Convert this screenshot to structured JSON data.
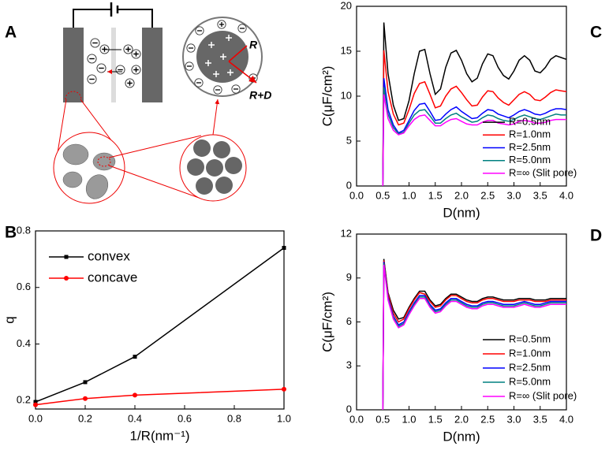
{
  "diagram": {
    "label": "A",
    "radius_label": "R",
    "outer_label": "R+D"
  },
  "chart_data": [
    {
      "type": "line",
      "label": "B",
      "xlabel": "1/R(nm⁻¹)",
      "ylabel": "q",
      "x": [
        0,
        0.2,
        0.4,
        1.0
      ],
      "series": [
        {
          "name": "convex",
          "color": "#000000",
          "marker": "square",
          "values": [
            0.195,
            0.265,
            0.355,
            0.74
          ]
        },
        {
          "name": "concave",
          "color": "#ff0000",
          "marker": "circle",
          "values": [
            0.185,
            0.207,
            0.219,
            0.24
          ]
        }
      ],
      "xlim": [
        0,
        1.0
      ],
      "xticks": [
        {
          "value": 0,
          "label": "0.0"
        },
        0.2,
        0.4,
        0.6,
        0.8,
        {
          "value": 1,
          "label": "1.0"
        }
      ],
      "ylim": [
        0.17,
        0.8
      ],
      "yticks": [
        0.2,
        0.4,
        0.6,
        0.8
      ],
      "legend": "upper left"
    },
    {
      "type": "line",
      "label": "C",
      "xlabel": "D(nm)",
      "ylabel": "C(μF/cm²)",
      "x": [
        0.5,
        0.52,
        0.6,
        0.7,
        0.8,
        0.9,
        1.0,
        1.1,
        1.2,
        1.3,
        1.4,
        1.5,
        1.6,
        1.7,
        1.8,
        1.9,
        2.0,
        2.1,
        2.2,
        2.3,
        2.4,
        2.5,
        2.6,
        2.7,
        2.8,
        2.9,
        3.0,
        3.1,
        3.2,
        3.3,
        3.4,
        3.5,
        3.6,
        3.7,
        3.8,
        3.9,
        4.0
      ],
      "series": [
        {
          "name": "R=0.5nm",
          "color": "#000000",
          "values": [
            0,
            18.2,
            12.5,
            9,
            7.3,
            7.5,
            9.5,
            12.5,
            15.0,
            15.2,
            12.5,
            10.2,
            10.8,
            13.2,
            14.8,
            15.1,
            14,
            12.5,
            11.6,
            12,
            13.6,
            14.7,
            14.5,
            13.2,
            12.3,
            11.9,
            12.8,
            14,
            14.5,
            14,
            12.8,
            12.6,
            13.2,
            14.1,
            14.5,
            14.3,
            14.1
          ]
        },
        {
          "name": "R=1.0nm",
          "color": "#ff0000",
          "values": [
            0,
            15.1,
            10.5,
            8,
            6.8,
            7,
            8.5,
            10.3,
            11.4,
            11.6,
            10.2,
            8.7,
            8.9,
            10,
            10.8,
            11.1,
            10.4,
            9.6,
            8.9,
            9,
            9.9,
            10.6,
            10.5,
            9.8,
            9.3,
            9.0,
            9.6,
            10.2,
            10.5,
            10.2,
            9.6,
            9.5,
            9.9,
            10.4,
            10.7,
            10.6,
            10.5
          ]
        },
        {
          "name": "R=2.5nm",
          "color": "#0000ff",
          "values": [
            0,
            12,
            8.5,
            6.8,
            5.9,
            6.2,
            7.3,
            8.4,
            9.1,
            9.2,
            8.3,
            7.3,
            7.4,
            8.0,
            8.5,
            8.8,
            8.3,
            7.9,
            7.5,
            7.6,
            8.1,
            8.5,
            8.4,
            8.0,
            7.8,
            7.6,
            7.9,
            8.3,
            8.5,
            8.3,
            8.0,
            7.9,
            8.1,
            8.4,
            8.6,
            8.6,
            8.5
          ]
        },
        {
          "name": "R=5.0nm",
          "color": "#008080",
          "values": [
            0,
            11,
            8,
            6.5,
            5.8,
            6.0,
            7.0,
            7.9,
            8.4,
            8.5,
            7.8,
            7.0,
            7.0,
            7.5,
            7.9,
            8.1,
            7.7,
            7.4,
            7.1,
            7.2,
            7.6,
            7.9,
            7.8,
            7.5,
            7.3,
            7.2,
            7.4,
            7.7,
            7.9,
            7.7,
            7.5,
            7.4,
            7.6,
            7.8,
            8.0,
            7.9,
            7.9
          ]
        },
        {
          "name": "R=∞ (Slit pore)",
          "color": "#ff00ff",
          "values": [
            0,
            10.2,
            7.5,
            6.2,
            5.7,
            5.9,
            6.7,
            7.4,
            7.8,
            7.9,
            7.3,
            6.7,
            6.7,
            7.1,
            7.4,
            7.5,
            7.2,
            6.9,
            6.8,
            6.8,
            7.1,
            7.3,
            7.3,
            7.0,
            6.9,
            6.8,
            6.9,
            7.2,
            7.3,
            7.2,
            7.0,
            7.0,
            7.1,
            7.3,
            7.4,
            7.4,
            7.4
          ]
        }
      ],
      "xlim": [
        0,
        4.0
      ],
      "xticks": [
        {
          "value": 0,
          "label": "0.0"
        },
        0.5,
        {
          "value": 1,
          "label": "1.0"
        },
        1.5,
        {
          "value": 2,
          "label": "2.0"
        },
        2.5,
        {
          "value": 3,
          "label": "3.0"
        },
        3.5,
        {
          "value": 4,
          "label": "4.0"
        }
      ],
      "ylim": [
        0,
        20
      ],
      "yticks": [
        0,
        5,
        10,
        15,
        20
      ],
      "legend": "lower right"
    },
    {
      "type": "line",
      "label": "D",
      "xlabel": "D(nm)",
      "ylabel": "C(μF/cm²)",
      "x": [
        0.5,
        0.52,
        0.6,
        0.7,
        0.8,
        0.9,
        1.0,
        1.1,
        1.2,
        1.3,
        1.4,
        1.5,
        1.6,
        1.7,
        1.8,
        1.9,
        2.0,
        2.1,
        2.2,
        2.3,
        2.4,
        2.5,
        2.6,
        2.7,
        2.8,
        2.9,
        3.0,
        3.1,
        3.2,
        3.3,
        3.4,
        3.5,
        3.6,
        3.7,
        3.8,
        3.9,
        4.0
      ],
      "series": [
        {
          "name": "R=0.5nm",
          "color": "#000000",
          "values": [
            0,
            10.3,
            8,
            6.8,
            6.2,
            6.3,
            7.0,
            7.6,
            8.1,
            8.1,
            7.5,
            7.1,
            7.2,
            7.6,
            7.9,
            7.9,
            7.7,
            7.5,
            7.4,
            7.4,
            7.6,
            7.7,
            7.7,
            7.6,
            7.5,
            7.5,
            7.5,
            7.6,
            7.6,
            7.6,
            7.5,
            7.5,
            7.5,
            7.6,
            7.6,
            7.6,
            7.6
          ]
        },
        {
          "name": "R=1.0nm",
          "color": "#ff0000",
          "values": [
            0,
            10.2,
            7.9,
            6.6,
            6.0,
            6.2,
            6.9,
            7.5,
            8.0,
            7.9,
            7.4,
            7.0,
            7.1,
            7.5,
            7.8,
            7.8,
            7.6,
            7.4,
            7.3,
            7.3,
            7.5,
            7.6,
            7.6,
            7.5,
            7.4,
            7.4,
            7.4,
            7.5,
            7.5,
            7.5,
            7.4,
            7.4,
            7.4,
            7.5,
            7.5,
            7.5,
            7.5
          ]
        },
        {
          "name": "R=2.5nm",
          "color": "#0000ff",
          "values": [
            0,
            10.1,
            7.7,
            6.4,
            5.8,
            6.0,
            6.7,
            7.3,
            7.8,
            7.8,
            7.2,
            6.8,
            6.9,
            7.3,
            7.6,
            7.6,
            7.4,
            7.2,
            7.1,
            7.1,
            7.3,
            7.4,
            7.4,
            7.3,
            7.2,
            7.2,
            7.2,
            7.3,
            7.4,
            7.3,
            7.2,
            7.2,
            7.3,
            7.4,
            7.4,
            7.4,
            7.4
          ]
        },
        {
          "name": "R=5.0nm",
          "color": "#008080",
          "values": [
            0,
            10.0,
            7.6,
            6.3,
            5.7,
            5.9,
            6.6,
            7.2,
            7.7,
            7.7,
            7.1,
            6.7,
            6.8,
            7.2,
            7.5,
            7.5,
            7.3,
            7.1,
            7.0,
            7.0,
            7.2,
            7.3,
            7.3,
            7.2,
            7.1,
            7.1,
            7.1,
            7.2,
            7.3,
            7.2,
            7.1,
            7.1,
            7.2,
            7.3,
            7.3,
            7.3,
            7.3
          ]
        },
        {
          "name": "R=∞ (Slit pore)",
          "color": "#ff00ff",
          "values": [
            0,
            9.9,
            7.5,
            6.2,
            5.6,
            5.8,
            6.5,
            7.1,
            7.6,
            7.6,
            7.0,
            6.6,
            6.7,
            7.1,
            7.4,
            7.4,
            7.2,
            7.0,
            6.9,
            6.9,
            7.1,
            7.2,
            7.2,
            7.1,
            7.0,
            7.0,
            7.0,
            7.1,
            7.2,
            7.1,
            7.0,
            7.0,
            7.1,
            7.2,
            7.2,
            7.2,
            7.2
          ]
        }
      ],
      "xlim": [
        0,
        4.0
      ],
      "xticks": [
        {
          "value": 0,
          "label": "0.0"
        },
        0.5,
        {
          "value": 1,
          "label": "1.0"
        },
        1.5,
        {
          "value": 2,
          "label": "2.0"
        },
        2.5,
        {
          "value": 3,
          "label": "3.0"
        },
        3.5,
        {
          "value": 4,
          "label": "4.0"
        }
      ],
      "ylim": [
        0,
        12
      ],
      "yticks": [
        0,
        3,
        6,
        9,
        12
      ],
      "legend": "lower right"
    }
  ]
}
